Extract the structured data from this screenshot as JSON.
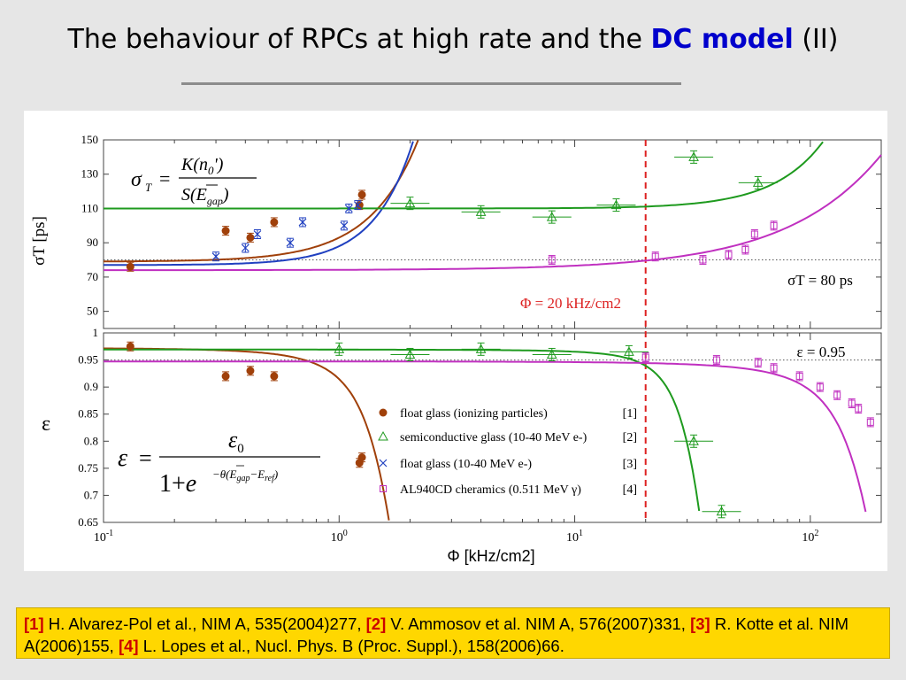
{
  "slide": {
    "title_pre": "The behaviour of RPCs at high rate and the ",
    "title_highlight": "DC model",
    "title_post": " (II)"
  },
  "references": [
    {
      "tag": "[1]",
      "text": "H. Alvarez-Pol et al., NIM A, 535(2004)277,"
    },
    {
      "tag": "[2]",
      "text": "V. Ammosov et al. NIM A, 576(2007)331,"
    },
    {
      "tag": "[3]",
      "text": "R. Kotte et al. NIM A(2006)155,"
    },
    {
      "tag": "[4]",
      "text": "L. Lopes et al., Nucl. Phys. B (Proc. Suppl.), 158(2006)66."
    }
  ],
  "colors": {
    "s1": "#a0400a",
    "s2": "#1e9a1e",
    "s3": "#2040c0",
    "s4": "#c030c0",
    "marker": "#dd2222"
  },
  "chart_data": [
    {
      "type": "scatter",
      "panel": "top",
      "ylabel": "σT [ps]",
      "xscale": "log",
      "xlim": [
        0.1,
        200
      ],
      "ylim": [
        40,
        150
      ],
      "yticks": [
        50,
        70,
        90,
        110,
        130,
        150
      ],
      "reference_line": {
        "y": 80,
        "label": "σT = 80 ps"
      },
      "vertical_marker": {
        "x": 20,
        "label": "Φ = 20 kHz/cm2"
      },
      "series": [
        {
          "name": "float glass (ionizing particles)",
          "points": [
            [
              0.13,
              76
            ],
            [
              0.33,
              97
            ],
            [
              0.42,
              93
            ],
            [
              0.53,
              102
            ],
            [
              1.25,
              118
            ],
            [
              1.22,
              112
            ]
          ]
        },
        {
          "name": "semiconductive glass (10-40 MeV e-)",
          "points": [
            [
              2,
              113
            ],
            [
              4,
              108
            ],
            [
              8,
              105
            ],
            [
              15,
              112
            ],
            [
              32,
              140
            ],
            [
              60,
              125
            ]
          ]
        },
        {
          "name": "float glass (10-40 MeV e-)",
          "points": [
            [
              0.3,
              82
            ],
            [
              0.4,
              87
            ],
            [
              0.45,
              95
            ],
            [
              0.62,
              90
            ],
            [
              0.7,
              102
            ],
            [
              1.05,
              100
            ],
            [
              1.1,
              110
            ],
            [
              1.2,
              112
            ]
          ]
        },
        {
          "name": "AL940CD cheramics (0.511 MeV γ)",
          "points": [
            [
              8,
              80
            ],
            [
              22,
              82
            ],
            [
              35,
              80
            ],
            [
              45,
              83
            ],
            [
              53,
              86
            ],
            [
              58,
              95
            ],
            [
              70,
              100
            ]
          ]
        }
      ]
    },
    {
      "type": "scatter",
      "panel": "bottom",
      "ylabel": "ε",
      "xlabel": "Φ [kHz/cm2]",
      "xscale": "log",
      "xlim": [
        0.1,
        200
      ],
      "ylim": [
        0.65,
        1.0
      ],
      "yticks": [
        "0.65",
        "0.7",
        "0.75",
        "0.8",
        "0.85",
        "0.9",
        "0.95",
        "1"
      ],
      "xticks": [
        "10-1",
        "100",
        "101",
        "102"
      ],
      "reference_line": {
        "y": 0.95,
        "label": "ε = 0.95"
      },
      "series": [
        {
          "name": "float glass (ionizing particles)",
          "ref": "[1]",
          "points": [
            [
              0.13,
              0.975
            ],
            [
              0.33,
              0.92
            ],
            [
              0.42,
              0.93
            ],
            [
              0.53,
              0.92
            ],
            [
              1.22,
              0.76
            ],
            [
              1.25,
              0.77
            ]
          ]
        },
        {
          "name": "semiconductive glass (10-40 MeV e-)",
          "ref": "[2]",
          "points": [
            [
              1,
              0.97
            ],
            [
              2,
              0.96
            ],
            [
              4,
              0.97
            ],
            [
              8,
              0.96
            ],
            [
              17,
              0.965
            ],
            [
              32,
              0.8
            ],
            [
              42,
              0.67
            ]
          ]
        },
        {
          "name": "float glass (10-40 MeV e-)",
          "ref": "[3]",
          "points": []
        },
        {
          "name": "AL940CD cheramics (0.511 MeV γ)",
          "ref": "[4]",
          "points": [
            [
              20,
              0.955
            ],
            [
              40,
              0.95
            ],
            [
              60,
              0.945
            ],
            [
              70,
              0.935
            ],
            [
              90,
              0.92
            ],
            [
              110,
              0.9
            ],
            [
              130,
              0.885
            ],
            [
              150,
              0.87
            ],
            [
              160,
              0.86
            ],
            [
              180,
              0.835
            ]
          ]
        }
      ]
    }
  ]
}
